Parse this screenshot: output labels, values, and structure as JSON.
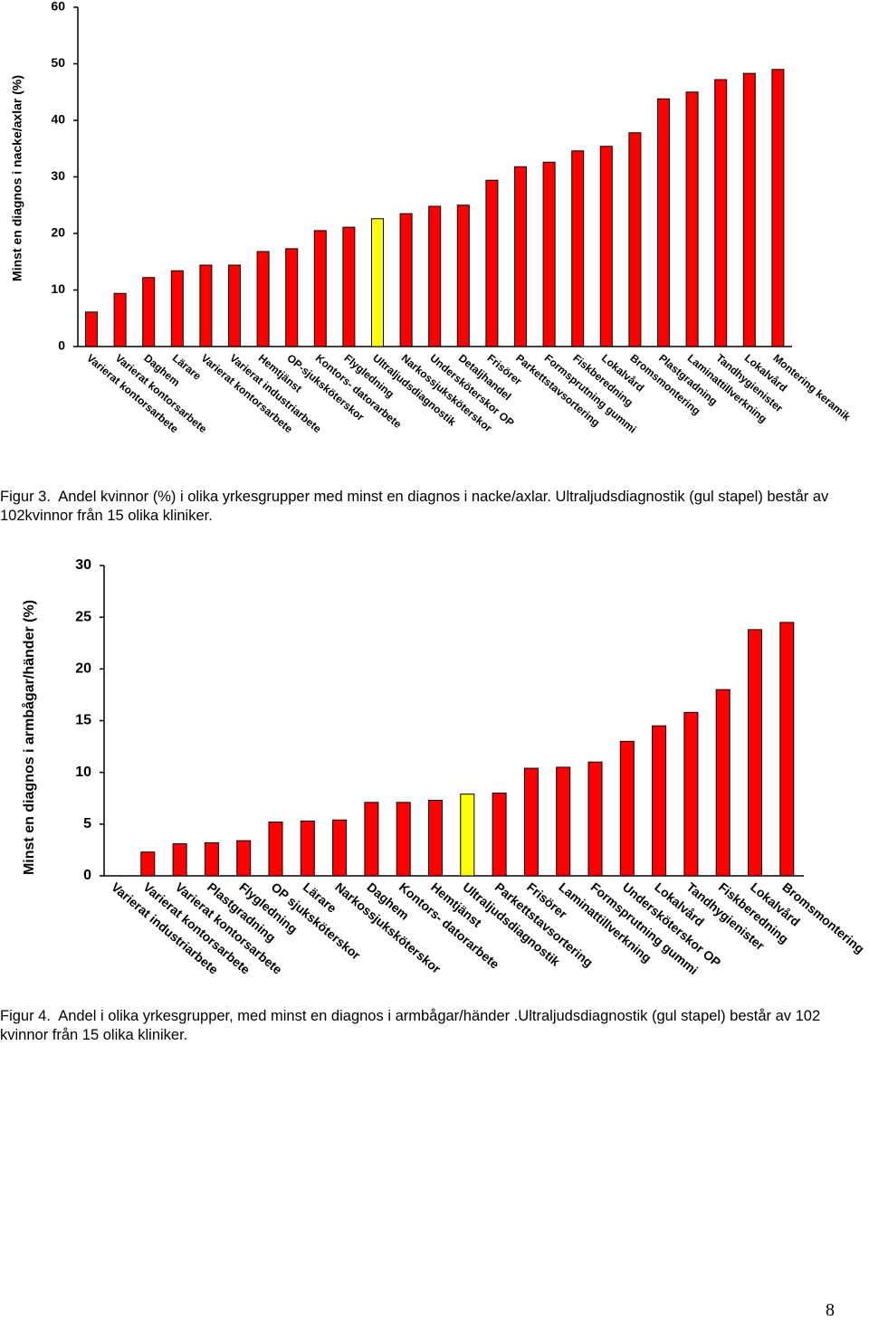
{
  "chart_data": [
    {
      "type": "bar",
      "y_label": "Minst en diagnos i nacke/axlar (%)",
      "categories": [
        "Varierat kontorsarbete",
        "Varierat kontorsarbete",
        "Daghem",
        "Lärare",
        "Varierat kontorsarbete",
        "Varierat industriarbete",
        "Hemtjänst",
        "OP-sjuksköterskor",
        "Kontors- datorarbete",
        "Flygledning",
        "Ultraljudsdiagnostik",
        "Narkossjuksköterskor",
        "Undersköterskor OP",
        "Detaljhandel",
        "Frisörer",
        "Parkettstavsortering",
        "Formsprutning gummi",
        "Fiskberedning",
        "Lokalvård",
        "Bromsmontering",
        "Plastgradning",
        "Laminattillverkning",
        "Tandhygienister",
        "Lokalvård",
        "Montering keramik"
      ],
      "values": [
        6.1,
        9.4,
        12.2,
        13.4,
        14.4,
        14.4,
        16.8,
        17.3,
        20.5,
        21.1,
        22.6,
        23.5,
        24.8,
        25.0,
        29.4,
        31.8,
        32.6,
        34.6,
        35.4,
        37.8,
        43.8,
        45.0,
        47.2,
        48.3,
        49.0
      ],
      "colors": [
        "#ff0000",
        "#ff0000",
        "#ff0000",
        "#ff0000",
        "#ff0000",
        "#ff0000",
        "#ff0000",
        "#ff0000",
        "#ff0000",
        "#ff0000",
        "#ffff00",
        "#ff0000",
        "#ff0000",
        "#ff0000",
        "#ff0000",
        "#ff0000",
        "#ff0000",
        "#ff0000",
        "#ff0000",
        "#ff0000",
        "#ff0000",
        "#ff0000",
        "#ff0000",
        "#ff0000",
        "#ff0000"
      ],
      "ylim": [
        0,
        60
      ],
      "yticks": [
        0,
        10,
        20,
        30,
        40,
        50,
        60
      ],
      "grid": false
    },
    {
      "type": "bar",
      "y_label": "Minst en diagnos i armbågar/händer (%)",
      "categories": [
        "Varierat industriarbete",
        "Varierat kontorsarbete",
        "Varierat kontorsarbete",
        "Plastgradning",
        "Flygledning",
        "OP sjuksköterskor",
        "Lärare",
        "Narkossjuksköterskor",
        "Daghem",
        "Kontors- datorarbete",
        "Hemtjänst",
        "Ultraljudsdiagnostik",
        "Parkettstavsortering",
        "Frisörer",
        "Laminattillverkning",
        "Formsprutning gummi",
        "Undersköterskor OP",
        "Lokalvård",
        "Tandhygienister",
        "Fiskberedning",
        "Lokalvård",
        "Bromsmontering"
      ],
      "values": [
        0,
        2.3,
        3.1,
        3.2,
        3.4,
        5.2,
        5.3,
        5.4,
        7.1,
        7.1,
        7.3,
        7.9,
        8.0,
        10.4,
        10.5,
        11.0,
        13.0,
        14.5,
        15.8,
        18.0,
        23.8,
        24.5
      ],
      "colors": [
        "#ff0000",
        "#ff0000",
        "#ff0000",
        "#ff0000",
        "#ff0000",
        "#ff0000",
        "#ff0000",
        "#ff0000",
        "#ff0000",
        "#ff0000",
        "#ff0000",
        "#ffff00",
        "#ff0000",
        "#ff0000",
        "#ff0000",
        "#ff0000",
        "#ff0000",
        "#ff0000",
        "#ff0000",
        "#ff0000",
        "#ff0000",
        "#ff0000"
      ],
      "ylim": [
        0,
        30
      ],
      "yticks": [
        0,
        5,
        10,
        15,
        20,
        25,
        30
      ],
      "grid": false
    }
  ],
  "captions": [
    {
      "label": "Figur 3.",
      "text": "Andel kvinnor (%) i olika yrkesgrupper med minst en diagnos i nacke/axlar. Ultraljudsdiagnostik (gul stapel) består av 102kvinnor från 15 olika kliniker."
    },
    {
      "label": "Figur 4.",
      "text": "Andel i olika yrkesgrupper, med minst en diagnos i armbågar/händer .Ultraljudsdiagnostik (gul stapel) består av 102 kvinnor från 15 olika kliniker."
    }
  ],
  "page_number": "8"
}
